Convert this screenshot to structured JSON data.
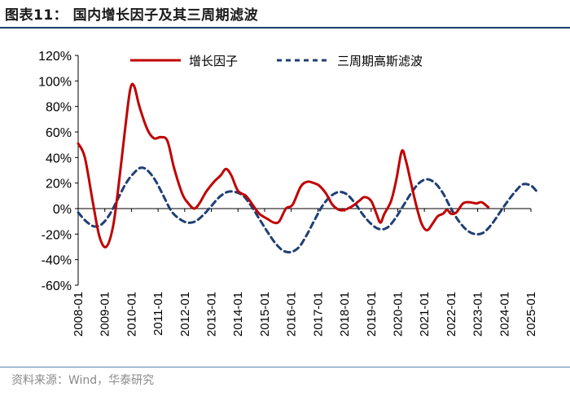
{
  "figure": {
    "title": "图表11：  国内增长因子及其三周期滤波",
    "source": "资料来源：Wind，华泰研究"
  },
  "colors": {
    "growth": "#c00000",
    "filter": "#1f3f73",
    "rule": "#1f3f73"
  },
  "chart_data": {
    "type": "line",
    "x_label": "",
    "y_label": "",
    "ylim": [
      -60,
      120
    ],
    "yticks": [
      "120%",
      "100%",
      "80%",
      "60%",
      "40%",
      "20%",
      "0%",
      "-20%",
      "-40%",
      "-60%"
    ],
    "xticks": [
      "2008-01",
      "2009-01",
      "2010-01",
      "2011-01",
      "2012-01",
      "2013-01",
      "2014-01",
      "2015-01",
      "2016-01",
      "2017-01",
      "2018-01",
      "2019-01",
      "2020-01",
      "2021-01",
      "2022-01",
      "2023-01",
      "2024-01",
      "2025-01"
    ],
    "xlim": [
      2008.0,
      2025.0
    ],
    "legend_position": "top",
    "series": [
      {
        "name": "增长因子",
        "style": "solid",
        "points": [
          [
            2008.0,
            51
          ],
          [
            2008.25,
            40
          ],
          [
            2008.55,
            5
          ],
          [
            2008.8,
            -22
          ],
          [
            2009.05,
            -30
          ],
          [
            2009.3,
            -15
          ],
          [
            2009.5,
            15
          ],
          [
            2009.75,
            60
          ],
          [
            2009.95,
            93
          ],
          [
            2010.1,
            96
          ],
          [
            2010.3,
            80
          ],
          [
            2010.6,
            62
          ],
          [
            2010.85,
            55
          ],
          [
            2011.1,
            56
          ],
          [
            2011.35,
            53
          ],
          [
            2011.6,
            32
          ],
          [
            2011.9,
            12
          ],
          [
            2012.1,
            5
          ],
          [
            2012.35,
            0
          ],
          [
            2012.55,
            4
          ],
          [
            2012.8,
            13
          ],
          [
            2013.1,
            21
          ],
          [
            2013.35,
            26
          ],
          [
            2013.55,
            31
          ],
          [
            2013.75,
            26
          ],
          [
            2014.0,
            14
          ],
          [
            2014.3,
            10
          ],
          [
            2014.55,
            3
          ],
          [
            2014.8,
            -4
          ],
          [
            2015.1,
            -8
          ],
          [
            2015.35,
            -11
          ],
          [
            2015.55,
            -10
          ],
          [
            2015.8,
            0
          ],
          [
            2016.05,
            3
          ],
          [
            2016.35,
            17
          ],
          [
            2016.6,
            21
          ],
          [
            2016.85,
            20
          ],
          [
            2017.05,
            18
          ],
          [
            2017.3,
            12
          ],
          [
            2017.55,
            3
          ],
          [
            2017.8,
            -1
          ],
          [
            2018.0,
            -1
          ],
          [
            2018.3,
            2
          ],
          [
            2018.55,
            6
          ],
          [
            2018.75,
            9
          ],
          [
            2019.0,
            6
          ],
          [
            2019.2,
            -4
          ],
          [
            2019.35,
            -11
          ],
          [
            2019.5,
            -4
          ],
          [
            2019.75,
            6
          ],
          [
            2019.95,
            23
          ],
          [
            2020.15,
            45
          ],
          [
            2020.3,
            38
          ],
          [
            2020.5,
            20
          ],
          [
            2020.7,
            2
          ],
          [
            2020.9,
            -12
          ],
          [
            2021.1,
            -17
          ],
          [
            2021.3,
            -12
          ],
          [
            2021.5,
            -6
          ],
          [
            2021.7,
            -4
          ],
          [
            2021.85,
            -1
          ],
          [
            2022.0,
            -4
          ],
          [
            2022.2,
            -3
          ],
          [
            2022.45,
            4
          ],
          [
            2022.7,
            5
          ],
          [
            2022.95,
            4
          ],
          [
            2023.15,
            5
          ],
          [
            2023.4,
            1
          ]
        ]
      },
      {
        "name": "三周期高斯滤波",
        "style": "dashed",
        "points": [
          [
            2008.0,
            -3
          ],
          [
            2008.3,
            -10
          ],
          [
            2008.6,
            -14
          ],
          [
            2008.9,
            -12
          ],
          [
            2009.2,
            -4
          ],
          [
            2009.5,
            8
          ],
          [
            2009.8,
            20
          ],
          [
            2010.1,
            28
          ],
          [
            2010.35,
            32
          ],
          [
            2010.6,
            30
          ],
          [
            2010.9,
            22
          ],
          [
            2011.2,
            10
          ],
          [
            2011.5,
            -2
          ],
          [
            2011.8,
            -8
          ],
          [
            2012.1,
            -11
          ],
          [
            2012.4,
            -10
          ],
          [
            2012.7,
            -5
          ],
          [
            2013.0,
            2
          ],
          [
            2013.3,
            9
          ],
          [
            2013.6,
            13
          ],
          [
            2013.9,
            13
          ],
          [
            2014.2,
            10
          ],
          [
            2014.5,
            2
          ],
          [
            2014.8,
            -8
          ],
          [
            2015.1,
            -18
          ],
          [
            2015.4,
            -27
          ],
          [
            2015.7,
            -33
          ],
          [
            2016.0,
            -34
          ],
          [
            2016.3,
            -30
          ],
          [
            2016.6,
            -20
          ],
          [
            2016.9,
            -8
          ],
          [
            2017.2,
            3
          ],
          [
            2017.5,
            10
          ],
          [
            2017.8,
            13
          ],
          [
            2018.1,
            11
          ],
          [
            2018.4,
            4
          ],
          [
            2018.7,
            -5
          ],
          [
            2019.0,
            -12
          ],
          [
            2019.3,
            -16
          ],
          [
            2019.6,
            -15
          ],
          [
            2019.9,
            -8
          ],
          [
            2020.2,
            2
          ],
          [
            2020.5,
            12
          ],
          [
            2020.8,
            20
          ],
          [
            2021.1,
            23
          ],
          [
            2021.4,
            20
          ],
          [
            2021.7,
            12
          ],
          [
            2022.0,
            0
          ],
          [
            2022.3,
            -10
          ],
          [
            2022.6,
            -17
          ],
          [
            2022.9,
            -20
          ],
          [
            2023.2,
            -19
          ],
          [
            2023.5,
            -13
          ],
          [
            2023.8,
            -4
          ],
          [
            2024.1,
            5
          ],
          [
            2024.4,
            13
          ],
          [
            2024.7,
            19
          ],
          [
            2025.0,
            18
          ],
          [
            2025.2,
            14
          ]
        ]
      }
    ]
  }
}
